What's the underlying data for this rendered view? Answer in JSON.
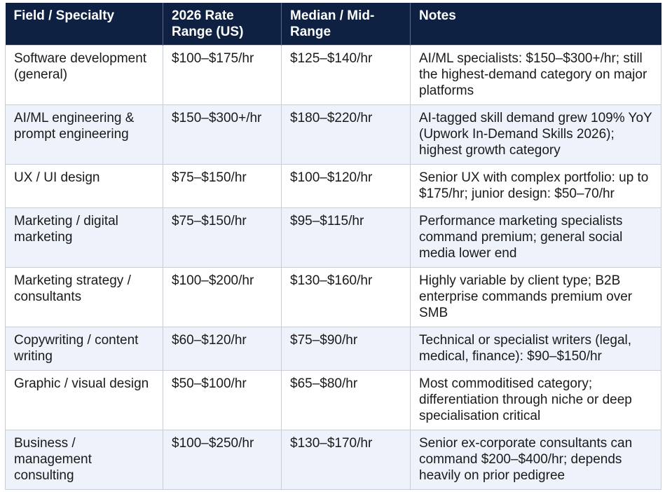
{
  "table": {
    "headers": [
      "Field / Specialty",
      "2026 Rate Range (US)",
      "Median / Mid-Range",
      "Notes"
    ],
    "rows": [
      {
        "field": "Software development (general)",
        "range": "$100–$175/hr",
        "median": "$125–$140/hr",
        "notes": "AI/ML specialists: $150–$300+/hr; still the highest-demand category on major platforms"
      },
      {
        "field": "AI/ML engineering & prompt engineering",
        "range": "$150–$300+/hr",
        "median": "$180–$220/hr",
        "notes": "AI-tagged skill demand grew 109% YoY (Upwork In-Demand Skills 2026); highest growth category"
      },
      {
        "field": "UX / UI design",
        "range": "$75–$150/hr",
        "median": "$100–$120/hr",
        "notes": "Senior UX with complex portfolio: up to $175/hr; junior design: $50–70/hr"
      },
      {
        "field": "Marketing / digital marketing",
        "range": "$75–$150/hr",
        "median": "$95–$115/hr",
        "notes": "Performance marketing specialists command premium; general social media lower end"
      },
      {
        "field": "Marketing strategy / consultants",
        "range": "$100–$200/hr",
        "median": "$130–$160/hr",
        "notes": "Highly variable by client type; B2B enterprise commands premium over SMB"
      },
      {
        "field": "Copywriting / content writing",
        "range": "$60–$120/hr",
        "median": "$75–$90/hr",
        "notes": "Technical or specialist writers (legal, medical, finance): $90–$150/hr"
      },
      {
        "field": "Graphic / visual design",
        "range": "$50–$100/hr",
        "median": "$65–$80/hr",
        "notes": "Most commoditised category; differentiation through niche or deep specialisation critical"
      },
      {
        "field": "Business / management consulting",
        "range": "$100–$250/hr",
        "median": "$130–$170/hr",
        "notes": "Senior ex-corporate consultants can command $200–$400/hr; depends heavily on prior pedigree"
      }
    ]
  }
}
